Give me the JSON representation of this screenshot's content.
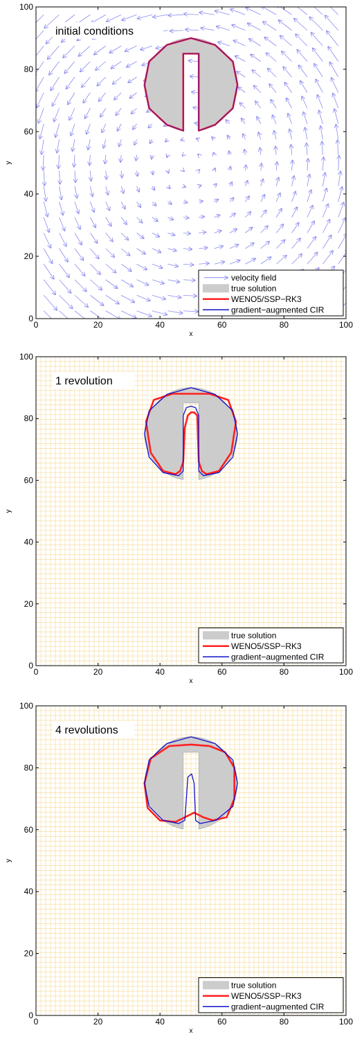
{
  "figure": {
    "panels": [
      {
        "annotation": "initial conditions"
      },
      {
        "annotation": "1 revolution"
      },
      {
        "annotation": "4 revolutions"
      }
    ]
  },
  "colors": {
    "velocity": "#8a8af0",
    "true_fill": "#cccccc",
    "true_edge": "#999999",
    "weno": "#ff2020",
    "cir": "#1010c8",
    "grid": "#f5d890"
  },
  "chart_data": [
    {
      "type": "line",
      "title": "",
      "annotation": "initial conditions",
      "xlabel": "x",
      "ylabel": "y",
      "xlim": [
        0,
        100
      ],
      "ylim": [
        0,
        100
      ],
      "xticks": [
        0,
        20,
        40,
        60,
        80,
        100
      ],
      "yticks": [
        0,
        20,
        40,
        60,
        80,
        100
      ],
      "grid": false,
      "legend_position": "bottom-right",
      "legend": [
        "velocity field",
        "true solution",
        "WENO5/SSP−RK3",
        "gradient−augmented CIR"
      ],
      "velocity_field": {
        "center": [
          50,
          50
        ],
        "rotation": "counterclockwise",
        "grid_spacing": 5
      },
      "true_solution": {
        "disk_center": [
          50,
          75
        ],
        "disk_radius": 15,
        "slot_x": [
          47.5,
          52.5
        ],
        "slot_top_y": 85
      },
      "series": [
        {
          "name": "WENO5/SSP−RK3",
          "x": [
            50,
            57.8,
            63.5,
            65,
            63.5,
            57.8,
            52.5,
            52.5,
            50,
            47.5,
            47.5,
            42.2,
            36.5,
            35,
            36.5,
            42.2,
            50
          ],
          "y": [
            90,
            87.8,
            82.5,
            75,
            67.5,
            62.2,
            60.3,
            85,
            85,
            85,
            60.3,
            62.2,
            67.5,
            75,
            82.5,
            87.8,
            90
          ]
        },
        {
          "name": "gradient−augmented CIR",
          "x": [
            50,
            57.8,
            63.5,
            65,
            63.5,
            57.8,
            52.5,
            52.5,
            50,
            47.5,
            47.5,
            42.2,
            36.5,
            35,
            36.5,
            42.2,
            50
          ],
          "y": [
            90,
            87.8,
            82.5,
            75,
            67.5,
            62.2,
            60.3,
            85,
            85,
            85,
            60.3,
            62.2,
            67.5,
            75,
            82.5,
            87.8,
            90
          ]
        }
      ]
    },
    {
      "type": "line",
      "title": "",
      "annotation": "1 revolution",
      "xlabel": "x",
      "ylabel": "y",
      "xlim": [
        0,
        100
      ],
      "ylim": [
        0,
        100
      ],
      "xticks": [
        0,
        20,
        40,
        60,
        80,
        100
      ],
      "yticks": [
        0,
        20,
        40,
        60,
        80,
        100
      ],
      "grid": true,
      "legend_position": "bottom-right",
      "legend": [
        "true solution",
        "WENO5/SSP−RK3",
        "gradient−augmented CIR"
      ],
      "true_solution": {
        "disk_center": [
          50,
          75
        ],
        "disk_radius": 15,
        "slot_x": [
          47.5,
          52.5
        ],
        "slot_top_y": 85
      },
      "series": [
        {
          "name": "WENO5/SSP−RK3",
          "x": [
            50,
            56,
            62,
            64.5,
            63,
            59,
            55,
            53.5,
            52.5,
            52,
            51,
            50,
            49,
            48,
            47.5,
            46.5,
            45,
            41,
            37,
            35.5,
            38,
            44,
            50
          ],
          "y": [
            88,
            88,
            86,
            79,
            69,
            63,
            62,
            63,
            66,
            81,
            82,
            82,
            81,
            77,
            66,
            63,
            62,
            63,
            69,
            79,
            86,
            88,
            88
          ]
        },
        {
          "name": "gradient−augmented CIR",
          "x": [
            50,
            57.8,
            63.5,
            65,
            63.5,
            59,
            54,
            52.5,
            52.5,
            51.5,
            50,
            48.5,
            47.5,
            47.5,
            46,
            41,
            36.5,
            35,
            36.5,
            42.2,
            50
          ],
          "y": [
            90,
            87.8,
            82.5,
            75,
            67.5,
            62.5,
            61.5,
            63,
            81,
            83.5,
            84,
            83.5,
            81,
            63,
            61.5,
            62.5,
            67.5,
            75,
            82.5,
            87.8,
            90
          ]
        }
      ]
    },
    {
      "type": "line",
      "title": "",
      "annotation": "4 revolutions",
      "xlabel": "x",
      "ylabel": "y",
      "xlim": [
        0,
        100
      ],
      "ylim": [
        0,
        100
      ],
      "xticks": [
        0,
        20,
        40,
        60,
        80,
        100
      ],
      "yticks": [
        0,
        20,
        40,
        60,
        80,
        100
      ],
      "grid": true,
      "legend_position": "bottom-right",
      "legend": [
        "true solution",
        "WENO5/SSP−RK3",
        "gradient−augmented CIR"
      ],
      "true_solution": {
        "disk_center": [
          50,
          75
        ],
        "disk_radius": 15,
        "slot_x": [
          47.5,
          52.5
        ],
        "slot_top_y": 85
      },
      "series": [
        {
          "name": "WENO5/SSP−RK3",
          "x": [
            50,
            56,
            61,
            64,
            64,
            61.5,
            57,
            54,
            52,
            51,
            50,
            49,
            48,
            45,
            40,
            36,
            35,
            37,
            43,
            50
          ],
          "y": [
            87.5,
            87,
            85,
            80,
            70,
            64,
            63,
            64,
            65,
            65.5,
            65,
            64.5,
            64,
            62.5,
            63,
            67,
            75,
            83,
            87,
            87.5
          ]
        },
        {
          "name": "gradient−augmented CIR",
          "x": [
            50,
            57.8,
            63.5,
            65,
            63.5,
            58,
            53,
            51.5,
            51,
            50.2,
            49,
            48.5,
            48,
            46,
            41,
            36.5,
            35,
            36.5,
            42.2,
            50
          ],
          "y": [
            90,
            87.8,
            82.5,
            75,
            67.5,
            63,
            62,
            63,
            75,
            78,
            77,
            70,
            63,
            62,
            63,
            67.5,
            75,
            82.5,
            87.8,
            90
          ]
        }
      ]
    }
  ]
}
